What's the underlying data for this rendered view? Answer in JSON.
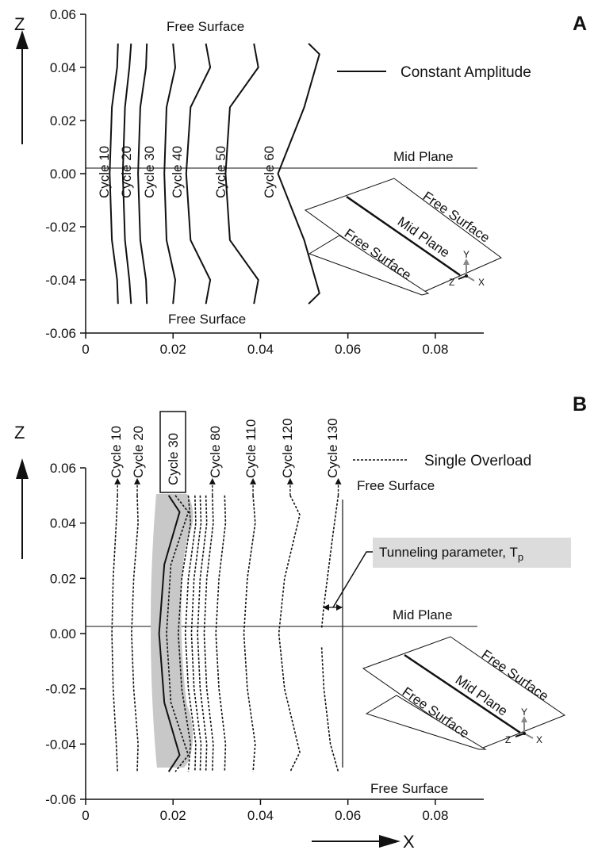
{
  "chart_data": [
    {
      "type": "line",
      "panel": "A",
      "z_axis_label": "Z",
      "xlim": [
        0,
        0.09
      ],
      "ylim": [
        -0.06,
        0.06
      ],
      "x_tick_labels": [
        "0",
        "0.02",
        "0.04",
        "0.06",
        "0.08"
      ],
      "x_ticks": [
        0,
        0.02,
        0.04,
        0.06,
        0.08
      ],
      "y_tick_labels": [
        "0.06",
        "0.04",
        "0.02",
        "0.00",
        "-0.02",
        "-0.04",
        "-0.06"
      ],
      "y_ticks": [
        0.06,
        0.04,
        0.02,
        0.0,
        -0.02,
        -0.04,
        -0.06
      ],
      "legend": "Constant Amplitude",
      "annotations": {
        "top": "Free Surface",
        "mid": "Mid Plane",
        "bottom": "Free Surface"
      },
      "inset": {
        "free_surface_1": "Free Surface",
        "mid_plane": "Mid Plane",
        "free_surface_2": "Free Surface",
        "ax_x": "X",
        "ax_y": "Y",
        "ax_z": "Z"
      },
      "series": [
        {
          "name": "Cycle 10",
          "style": "solid",
          "points": [
            [
              0.0074,
              0.049
            ],
            [
              0.0072,
              0.04
            ],
            [
              0.006,
              0.025
            ],
            [
              0.0055,
              0.0
            ],
            [
              0.006,
              -0.025
            ],
            [
              0.0072,
              -0.04
            ],
            [
              0.0074,
              -0.049
            ]
          ]
        },
        {
          "name": "Cycle 20",
          "style": "solid",
          "points": [
            [
              0.0104,
              0.049
            ],
            [
              0.01,
              0.04
            ],
            [
              0.009,
              0.025
            ],
            [
              0.0085,
              0.0
            ],
            [
              0.009,
              -0.025
            ],
            [
              0.01,
              -0.04
            ],
            [
              0.0104,
              -0.049
            ]
          ]
        },
        {
          "name": "Cycle 30",
          "style": "solid",
          "points": [
            [
              0.014,
              0.049
            ],
            [
              0.0138,
              0.04
            ],
            [
              0.0125,
              0.025
            ],
            [
              0.012,
              0.0
            ],
            [
              0.0125,
              -0.025
            ],
            [
              0.0138,
              -0.04
            ],
            [
              0.014,
              -0.049
            ]
          ]
        },
        {
          "name": "Cycle 40",
          "style": "solid",
          "points": [
            [
              0.02,
              0.049
            ],
            [
              0.0205,
              0.04
            ],
            [
              0.0185,
              0.025
            ],
            [
              0.018,
              0.0
            ],
            [
              0.0185,
              -0.025
            ],
            [
              0.0205,
              -0.04
            ],
            [
              0.02,
              -0.049
            ]
          ]
        },
        {
          "name": "Cycle 50",
          "style": "solid",
          "points": [
            [
              0.0275,
              0.049
            ],
            [
              0.0285,
              0.04
            ],
            [
              0.024,
              0.025
            ],
            [
              0.023,
              0.0
            ],
            [
              0.024,
              -0.025
            ],
            [
              0.0285,
              -0.04
            ],
            [
              0.0275,
              -0.049
            ]
          ]
        },
        {
          "name": "Cycle 60",
          "style": "solid",
          "points": [
            [
              0.0385,
              0.049
            ],
            [
              0.0395,
              0.04
            ],
            [
              0.033,
              0.025
            ],
            [
              0.032,
              0.0
            ],
            [
              0.033,
              -0.025
            ],
            [
              0.0395,
              -0.04
            ],
            [
              0.0385,
              -0.049
            ]
          ]
        },
        {
          "name": "",
          "style": "solid",
          "points": [
            [
              0.051,
              0.049
            ],
            [
              0.0535,
              0.045
            ],
            [
              0.05,
              0.025
            ],
            [
              0.044,
              0.0
            ],
            [
              0.05,
              -0.025
            ],
            [
              0.0535,
              -0.045
            ],
            [
              0.051,
              -0.049
            ]
          ]
        }
      ]
    },
    {
      "type": "line",
      "panel": "B",
      "z_axis_label": "Z",
      "x_axis_label": "X",
      "xlim": [
        0,
        0.09
      ],
      "ylim": [
        -0.06,
        0.06
      ],
      "x_tick_labels": [
        "0",
        "0.02",
        "0.04",
        "0.06",
        "0.08"
      ],
      "x_ticks": [
        0,
        0.02,
        0.04,
        0.06,
        0.08
      ],
      "y_tick_labels": [
        "0.06",
        "0.04",
        "0.02",
        "0.00",
        "-0.02",
        "-0.04",
        "-0.06"
      ],
      "y_ticks": [
        0.06,
        0.04,
        0.02,
        0.0,
        -0.02,
        -0.04,
        -0.06
      ],
      "legend": "Single Overload",
      "annotations": {
        "top": "Free Surface",
        "mid": "Mid Plane",
        "bottom": "Free Surface",
        "tunneling": "Tunneling parameter, T",
        "tunneling_sub": "p"
      },
      "inset": {
        "free_surface_1": "Free Surface",
        "mid_plane": "Mid Plane",
        "free_surface_2": "Free Surface",
        "ax_x": "X",
        "ax_y": "Y",
        "ax_z": "Z"
      },
      "cycle_labels": [
        "Cycle 10",
        "Cycle 20",
        "Cycle 30",
        "Cycle 80",
        "Cycle 110",
        "Cycle 120",
        "Cycle 130"
      ],
      "series": [
        {
          "name": "Cycle 10",
          "style": "dotted",
          "points": [
            [
              0.0073,
              0.05
            ],
            [
              0.007,
              0.04
            ],
            [
              0.0063,
              0.02
            ],
            [
              0.006,
              0.0
            ],
            [
              0.0063,
              -0.02
            ],
            [
              0.007,
              -0.04
            ],
            [
              0.0073,
              -0.05
            ]
          ]
        },
        {
          "name": "Cycle 20",
          "style": "dotted",
          "points": [
            [
              0.0118,
              0.05
            ],
            [
              0.012,
              0.04
            ],
            [
              0.011,
              0.02
            ],
            [
              0.0105,
              0.0
            ],
            [
              0.011,
              -0.02
            ],
            [
              0.012,
              -0.04
            ],
            [
              0.0118,
              -0.05
            ]
          ]
        },
        {
          "name": "Cycle 30",
          "style": "solid",
          "points": [
            [
              0.019,
              0.05
            ],
            [
              0.0215,
              0.044
            ],
            [
              0.018,
              0.025
            ],
            [
              0.0168,
              0.0
            ],
            [
              0.018,
              -0.025
            ],
            [
              0.0215,
              -0.044
            ],
            [
              0.019,
              -0.05
            ]
          ]
        },
        {
          "name": "",
          "style": "dotted",
          "points": [
            [
              0.0205,
              0.05
            ],
            [
              0.0235,
              0.044
            ],
            [
              0.0195,
              0.025
            ],
            [
              0.0185,
              0.0
            ],
            [
              0.0195,
              -0.025
            ],
            [
              0.0235,
              -0.044
            ],
            [
              0.0205,
              -0.05
            ]
          ]
        },
        {
          "name": "",
          "style": "dotted",
          "points": [
            [
              0.0235,
              0.05
            ],
            [
              0.024,
              0.04
            ],
            [
              0.022,
              0.02
            ],
            [
              0.0212,
              0.0
            ],
            [
              0.022,
              -0.02
            ],
            [
              0.024,
              -0.04
            ],
            [
              0.0235,
              -0.05
            ]
          ]
        },
        {
          "name": "",
          "style": "dotted",
          "points": [
            [
              0.025,
              0.05
            ],
            [
              0.0252,
              0.04
            ],
            [
              0.0235,
              0.02
            ],
            [
              0.0228,
              0.0
            ],
            [
              0.0235,
              -0.02
            ],
            [
              0.0252,
              -0.04
            ],
            [
              0.025,
              -0.05
            ]
          ]
        },
        {
          "name": "",
          "style": "dotted",
          "points": [
            [
              0.0262,
              0.05
            ],
            [
              0.0264,
              0.04
            ],
            [
              0.0248,
              0.02
            ],
            [
              0.0242,
              0.0
            ],
            [
              0.0248,
              -0.02
            ],
            [
              0.0264,
              -0.04
            ],
            [
              0.0262,
              -0.05
            ]
          ]
        },
        {
          "name": "",
          "style": "dotted",
          "points": [
            [
              0.0275,
              0.05
            ],
            [
              0.0277,
              0.04
            ],
            [
              0.0262,
              0.02
            ],
            [
              0.0256,
              0.0
            ],
            [
              0.0262,
              -0.02
            ],
            [
              0.0277,
              -0.04
            ],
            [
              0.0275,
              -0.05
            ]
          ]
        },
        {
          "name": "Cycle 80",
          "style": "dotted",
          "points": [
            [
              0.029,
              0.05
            ],
            [
              0.0292,
              0.04
            ],
            [
              0.0277,
              0.02
            ],
            [
              0.0271,
              0.0
            ],
            [
              0.0277,
              -0.02
            ],
            [
              0.0292,
              -0.04
            ],
            [
              0.029,
              -0.05
            ]
          ]
        },
        {
          "name": "",
          "style": "dotted",
          "points": [
            [
              0.0318,
              0.05
            ],
            [
              0.032,
              0.04
            ],
            [
              0.0305,
              0.02
            ],
            [
              0.0298,
              0.0
            ],
            [
              0.0305,
              -0.02
            ],
            [
              0.032,
              -0.04
            ],
            [
              0.0318,
              -0.05
            ]
          ]
        },
        {
          "name": "Cycle 110",
          "style": "dotted",
          "points": [
            [
              0.0383,
              0.05
            ],
            [
              0.0388,
              0.04
            ],
            [
              0.037,
              0.02
            ],
            [
              0.0362,
              0.0
            ],
            [
              0.037,
              -0.02
            ],
            [
              0.0388,
              -0.04
            ],
            [
              0.0383,
              -0.05
            ]
          ]
        },
        {
          "name": "Cycle 120",
          "style": "dotted",
          "points": [
            [
              0.0468,
              0.05
            ],
            [
              0.049,
              0.043
            ],
            [
              0.0455,
              0.02
            ],
            [
              0.0442,
              0.0
            ],
            [
              0.0455,
              -0.02
            ],
            [
              0.049,
              -0.043
            ],
            [
              0.0468,
              -0.05
            ]
          ]
        },
        {
          "name": "Cycle 130",
          "style": "dotted",
          "points": [
            [
              0.0578,
              0.05
            ],
            [
              0.0565,
              0.035
            ],
            [
              0.0545,
              0.01
            ],
            [
              0.054,
              0.002
            ]
          ]
        },
        {
          "name": "",
          "style": "dotted",
          "points": [
            [
              0.054,
              -0.005
            ],
            [
              0.0545,
              -0.02
            ],
            [
              0.056,
              -0.04
            ],
            [
              0.0578,
              -0.05
            ]
          ]
        }
      ]
    }
  ]
}
